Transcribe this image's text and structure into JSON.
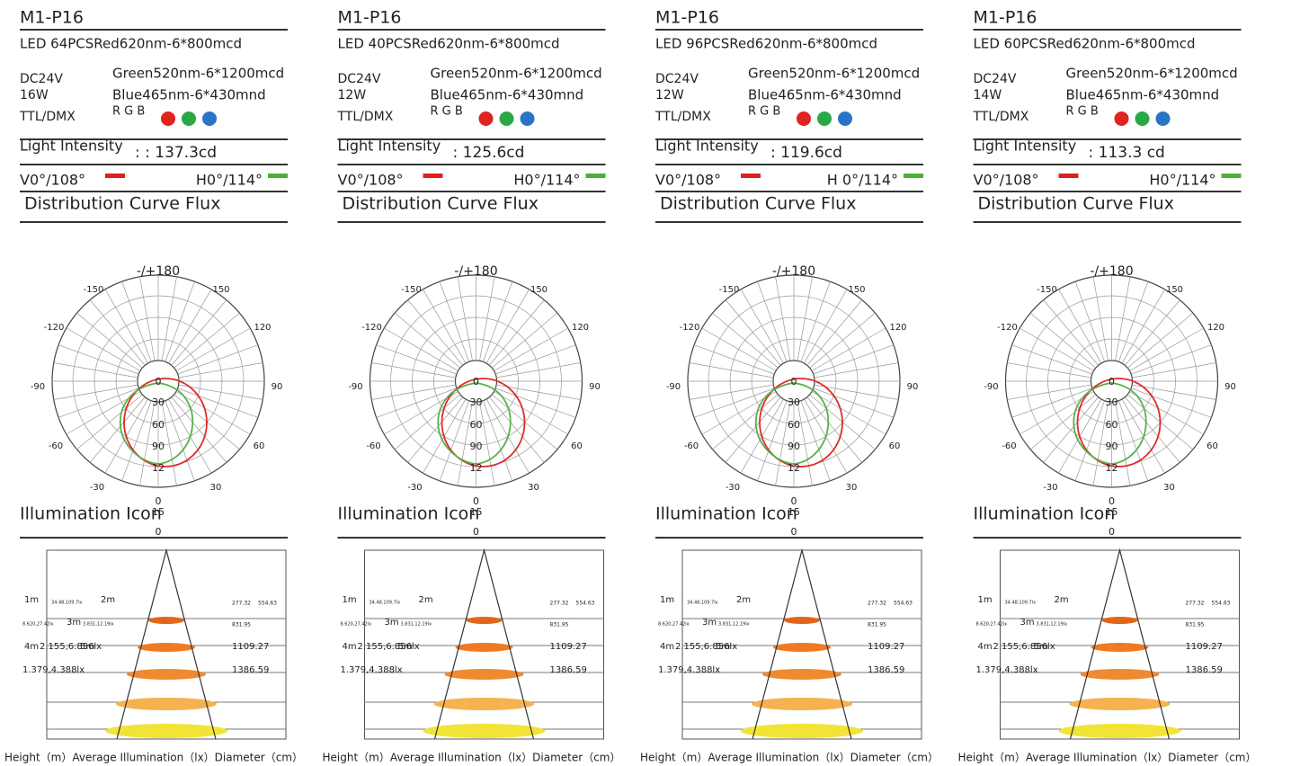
{
  "panels": [
    {
      "model": "M1-P16",
      "led": "LED 64PCSRed620nm-6*800mcd",
      "green": "Green520nm-6*1200mcd",
      "blue": "Blue465nm-6*430mnd",
      "voltage": "DC24V",
      "power": "16W",
      "control": "TTL/DMX",
      "rgb": "R G B",
      "intensity_label": "Light Intensity",
      "intensity_value": ": : 137.3cd",
      "v_label": "V0°/108°",
      "h_label": "H0°/114°",
      "curve_title": "Distribution Curve Flux",
      "illum_title": "Illumination Icon",
      "footer": "Height（m）Average Illumination（lx）Diameter（cm）"
    },
    {
      "model": "M1-P16",
      "led": "LED 40PCSRed620nm-6*800mcd",
      "green": "Green520nm-6*1200mcd",
      "blue": "Blue465nm-6*430mnd",
      "voltage": "DC24V",
      "power": "12W",
      "control": "TTL/DMX",
      "rgb": "R G B",
      "intensity_label": "Light Intensity",
      "intensity_value": ": 125.6cd",
      "v_label": "V0°/108°",
      "h_label": "H0°/114°",
      "curve_title": "Distribution Curve Flux",
      "illum_title": "Illumination Icon",
      "footer": "Height（m）Average Illumination（lx）Diameter（cm）"
    },
    {
      "model": "M1-P16",
      "led": "LED 96PCSRed620nm-6*800mcd",
      "green": "Green520nm-6*1200mcd",
      "blue": "Blue465nm-6*430mnd",
      "voltage": "DC24V",
      "power": "12W",
      "control": "TTL/DMX",
      "rgb": "R G B",
      "intensity_label": "Light Intensity",
      "intensity_value": ": 119.6cd",
      "v_label": "V0°/108°",
      "h_label": "H 0°/114°",
      "curve_title": "Distribution Curve Flux",
      "illum_title": "Illumination Icon",
      "footer": "Height（m）Average Illumination（lx）Diameter（cm）"
    },
    {
      "model": "M1-P16",
      "led": "LED 60PCSRed620nm-6*800mcd",
      "green": "Green520nm-6*1200mcd",
      "blue": "Blue465nm-6*430mnd",
      "voltage": "DC24V",
      "power": "14W",
      "control": "TTL/DMX",
      "rgb": "R G B",
      "intensity_label": "Light Intensity",
      "intensity_value": ": 113.3 cd",
      "v_label": "V0°/108°",
      "h_label": "H0°/114°",
      "curve_title": "Distribution Curve Flux",
      "illum_title": "Illumination Icon",
      "footer": "Height（m）Average Illumination（lx）Diameter（cm）"
    }
  ],
  "polar": {
    "angles": [
      "-/+180",
      "150",
      "-150",
      "120",
      "-120",
      "90",
      "-90",
      "60",
      "-60",
      "30",
      "-30"
    ],
    "radial": [
      "0",
      "30",
      "60",
      "90",
      "12",
      "0",
      "15",
      "0"
    ]
  },
  "illumination": {
    "labels": [
      "1m",
      "34.48,109.7lx",
      "2m",
      "277.32",
      "554.63",
      "8.620,27.42lx",
      "3m",
      "3.831,12.19lx",
      "831.95",
      "4m",
      "2.155,6.856lx",
      "5m",
      "1109.27",
      "1.379,4.388lx",
      "1386.59"
    ]
  }
}
